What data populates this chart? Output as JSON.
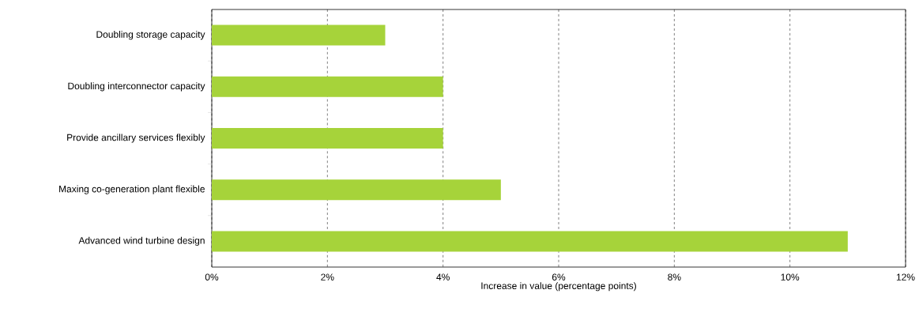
{
  "chart_data": {
    "type": "bar",
    "orientation": "horizontal",
    "xlabel": "Increase in value (percentage points)",
    "categories": [
      "Doubling storage capacity",
      "Doubling interconnector capacity",
      "Provide ancillary services flexibly",
      "Maxing co-generation plant flexible",
      "Advanced wind turbine design"
    ],
    "values": [
      3,
      4,
      4,
      5,
      11
    ],
    "color": "#a6d33a",
    "xlim": [
      0,
      12
    ],
    "xticks": [
      {
        "value": 0,
        "label": "0%"
      },
      {
        "value": 2,
        "label": "2%"
      },
      {
        "value": 4,
        "label": "4%"
      },
      {
        "value": 6,
        "label": "6%"
      },
      {
        "value": 8,
        "label": "8%"
      },
      {
        "value": 10,
        "label": "10%"
      },
      {
        "value": 12,
        "label": "12%"
      }
    ],
    "grid": "x"
  }
}
